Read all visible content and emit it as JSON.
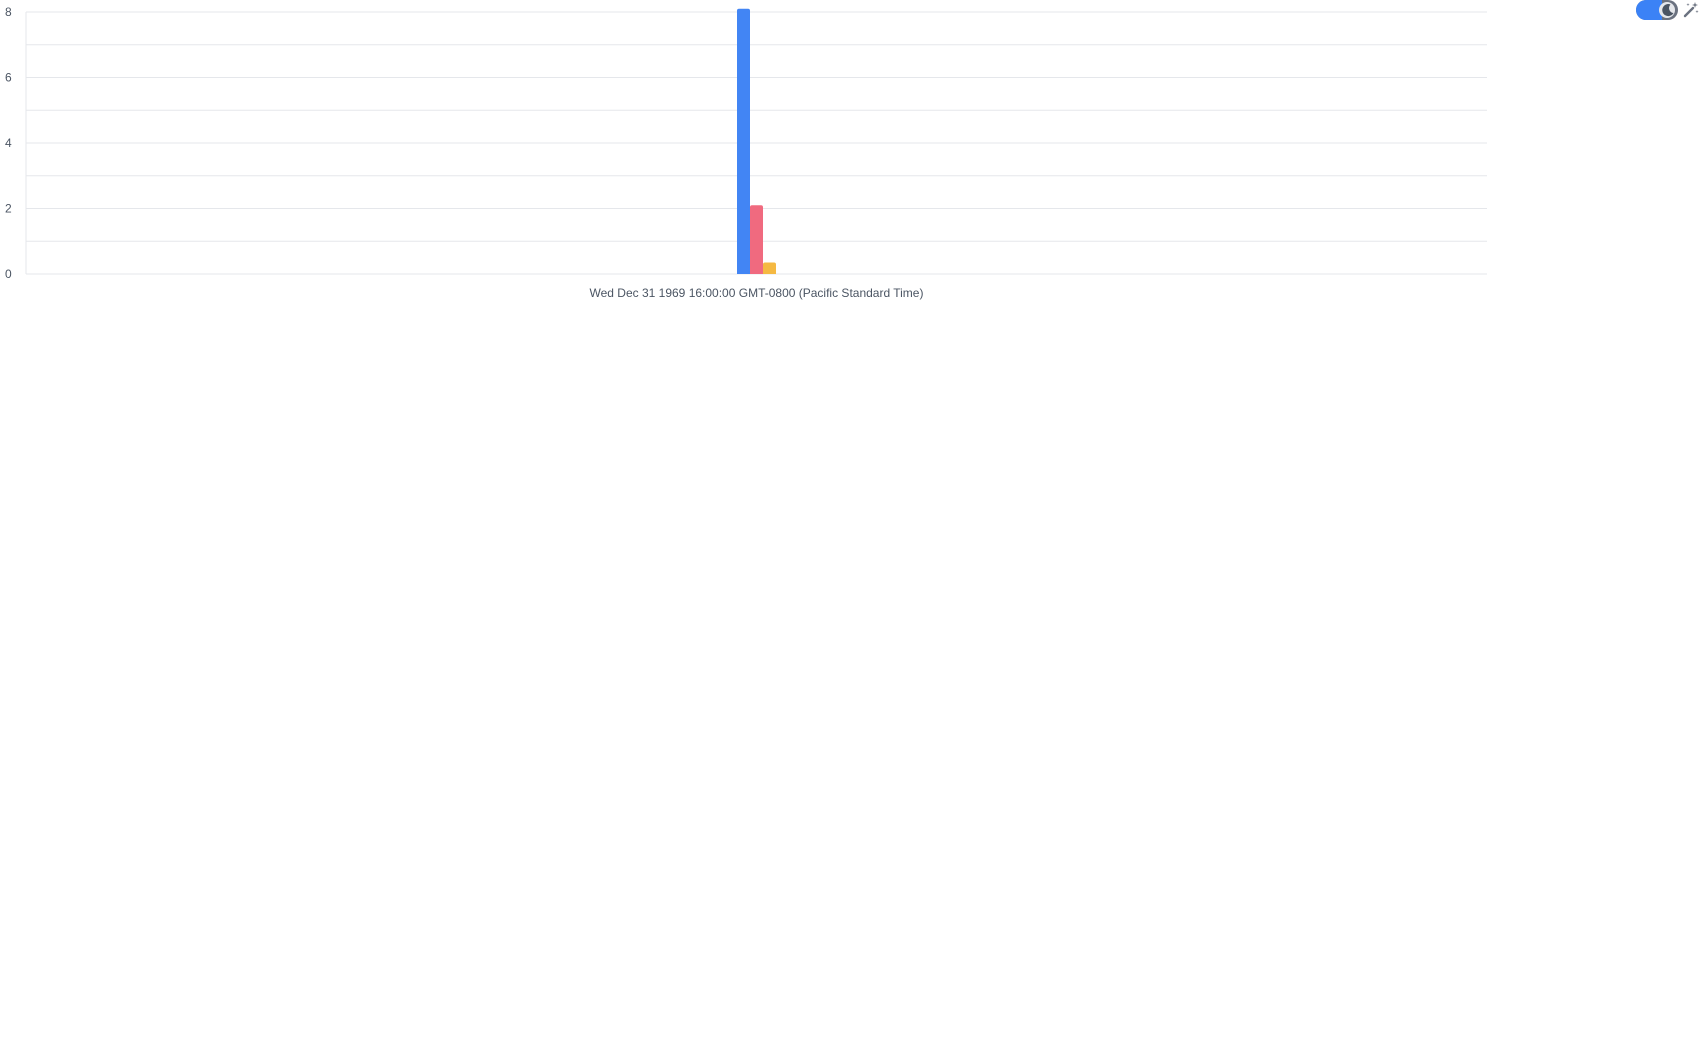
{
  "chart_data": {
    "type": "bar",
    "categories": [
      "Wed Dec 31 1969 16:00:00 GMT-0800 (Pacific Standard Time)"
    ],
    "series": [
      {
        "color": "#4285f4",
        "values": [
          8.1
        ]
      },
      {
        "color": "#f06a7f",
        "values": [
          2.1
        ]
      },
      {
        "color": "#f5b942",
        "values": [
          0.35
        ]
      }
    ],
    "ylim": [
      0,
      8
    ],
    "yticks": [
      0,
      2,
      4,
      6,
      8
    ],
    "grid": true,
    "legend": "none"
  },
  "controls": {
    "theme_toggle_icon": "moon-icon",
    "magic_icon": "magic-wand-icon"
  }
}
